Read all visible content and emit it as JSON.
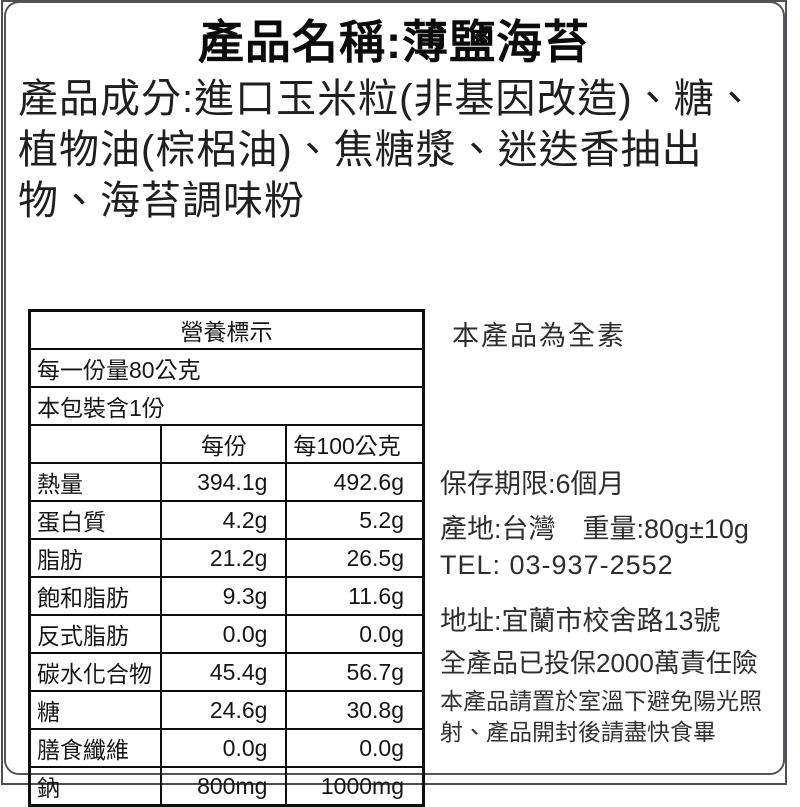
{
  "label": {
    "title": "產品名稱:薄鹽海苔",
    "ingredients": "產品成分:進口玉米粒(非基因改造)、糖、植物油(棕梠油)、焦糖漿、迷迭香抽出物、海苔調味粉"
  },
  "nutrition": {
    "header": "營養標示",
    "serving_size": "每一份量80公克",
    "servings_per_package": "本包裝含1份",
    "columns": {
      "per_serving": "每份",
      "per_100g": "每100公克"
    },
    "rows": [
      {
        "label": "熱量",
        "per_serving": "394.1g",
        "per_100g": "492.6g"
      },
      {
        "label": "蛋白質",
        "per_serving": "4.2g",
        "per_100g": "5.2g"
      },
      {
        "label": "脂肪",
        "per_serving": "21.2g",
        "per_100g": "26.5g"
      },
      {
        "label": "飽和脂肪",
        "per_serving": "9.3g",
        "per_100g": "11.6g"
      },
      {
        "label": "反式脂肪",
        "per_serving": "0.0g",
        "per_100g": "0.0g"
      },
      {
        "label": "碳水化合物",
        "per_serving": "45.4g",
        "per_100g": "56.7g"
      },
      {
        "label": "糖",
        "per_serving": "24.6g",
        "per_100g": "30.8g"
      },
      {
        "label": "膳食纖維",
        "per_serving": "0.0g",
        "per_100g": "0.0g"
      },
      {
        "label": "鈉",
        "per_serving": "800mg",
        "per_100g": "1000mg"
      }
    ]
  },
  "info": {
    "vegan": "本產品為全素",
    "shelf_life": "保存期限:6個月",
    "origin_weight": "產地:台灣　重量:80g±10g",
    "tel": "TEL: 03-937-2552",
    "address": "地址:宜蘭市校舍路13號",
    "insurance": "全產品已投保2000萬責任險",
    "storage_note": "本產品請置於室溫下避免陽光照射、產品開封後請盡快食畢"
  },
  "colors": {
    "border_frame": "#54545a",
    "table_border": "#0d0d0d",
    "text": "#1f1f1f",
    "background": "#ffffff"
  }
}
